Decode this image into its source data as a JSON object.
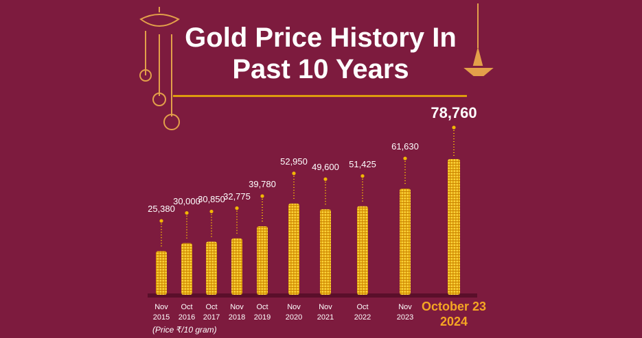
{
  "chart_data": {
    "type": "bar",
    "title": "Gold Price History In Past 10 Years",
    "categories": [
      "Nov 2015",
      "Oct 2016",
      "Oct 2017",
      "Nov 2018",
      "Oct 2019",
      "Nov 2020",
      "Nov 2021",
      "Oct 2022",
      "Nov 2023",
      "October 23 2024"
    ],
    "values": [
      25380,
      30000,
      30850,
      32775,
      39780,
      52950,
      49600,
      51425,
      61630,
      78760
    ],
    "value_labels": [
      "25,380",
      "30,000",
      "30,850",
      "32,775",
      "39,780",
      "52,950",
      "49,600",
      "51,425",
      "61,630",
      "78,760"
    ],
    "color": "#f2b705",
    "note": "(Price ₹/10 gram)"
  }
}
